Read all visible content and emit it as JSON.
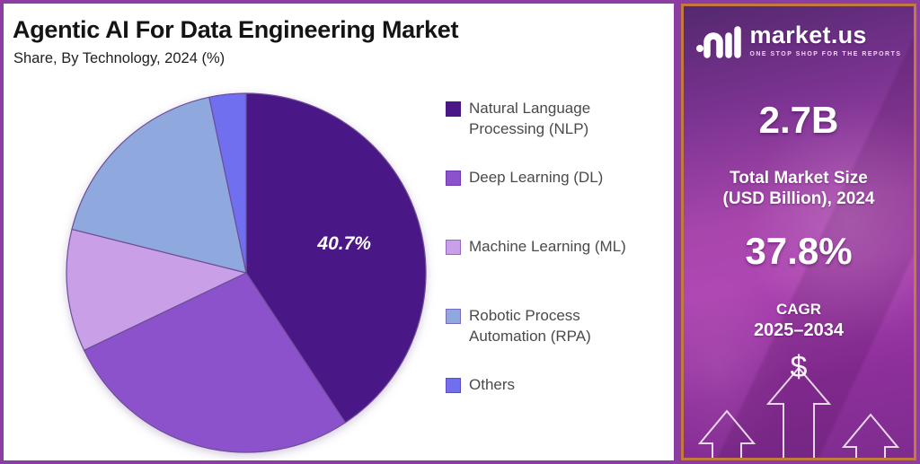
{
  "header": {
    "title": "Agentic AI For Data Engineering Market",
    "subtitle": "Share, By Technology, 2024 (%)"
  },
  "chart_data": {
    "type": "pie",
    "title": "Agentic AI For Data Engineering Market",
    "subtitle": "Share, By Technology, 2024 (%)",
    "unit": "%",
    "start_angle_deg": 0,
    "direction": "clockwise",
    "legend_position": "right",
    "labels": [
      "Natural Language Processing (NLP)",
      "Deep Learning (DL)",
      "Machine Learning (ML)",
      "Robotic Process Automation (RPA)",
      "Others"
    ],
    "values": [
      40.7,
      27.2,
      11.0,
      17.8,
      3.3
    ],
    "colors": [
      "#4A1786",
      "#8C52CC",
      "#C9A0E8",
      "#8FA9DE",
      "#6F6FEF"
    ],
    "data_label": {
      "slice_index": 0,
      "text": "40.7%",
      "color": "#ffffff",
      "style": "bold-italic"
    }
  },
  "sidebar": {
    "logo_text": "market.us",
    "logo_tagline": "ONE STOP SHOP FOR THE REPORTS",
    "market_size_value": "2.7B",
    "market_size_label": [
      "Total Market Size",
      "(USD Billion), 2024"
    ],
    "cagr_value": "37.8%",
    "cagr_label_line1": "CAGR",
    "cagr_label_line2": "2025–2034",
    "currency_symbol": "$"
  },
  "theme": {
    "outer_border_color": "#8B3DA2",
    "sidebar_border_color": "#C27A3E",
    "slice_outline_color": "#6D4E98",
    "legend_text_color": "#4a4a4a"
  }
}
